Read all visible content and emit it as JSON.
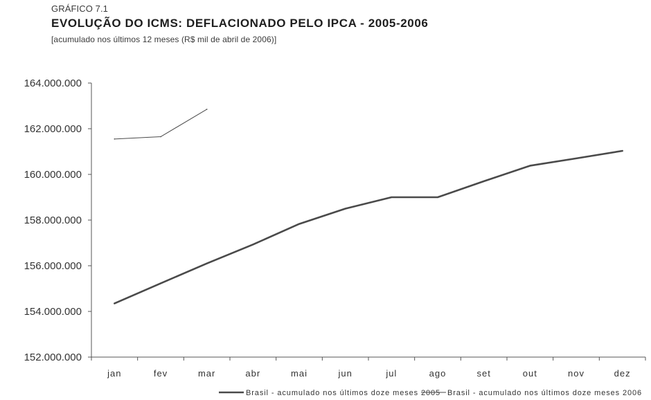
{
  "figure": {
    "label": "GRÁFICO 7.1",
    "title": "EVOLUÇÃO DO ICMS: DEFLACIONADO PELO IPCA - 2005-2006",
    "subtitle": "[acumulado nos últimos 12 meses (R$ mil de abril de 2006)]"
  },
  "chart_data": {
    "type": "line",
    "categories": [
      "jan",
      "fev",
      "mar",
      "abr",
      "mai",
      "jun",
      "jul",
      "ago",
      "set",
      "out",
      "nov",
      "dez"
    ],
    "ylim": [
      152000000,
      164000000
    ],
    "yticks": [
      152000000,
      154000000,
      156000000,
      158000000,
      160000000,
      162000000,
      164000000
    ],
    "ytick_labels": [
      "152.000.000",
      "154.000.000",
      "156.000.000",
      "158.000.000",
      "160.000.000",
      "162.000.000",
      "164.000.000"
    ],
    "xlabel": "",
    "ylabel": "",
    "grid": false,
    "legend_position": "bottom-right",
    "series": [
      {
        "name": "Brasil - acumulado nos últimos doze meses 2005",
        "color": "#4a4a4a",
        "style": "thick",
        "values": [
          154350000,
          155230000,
          156100000,
          156930000,
          157830000,
          158500000,
          159000000,
          159000000,
          159700000,
          160380000,
          160700000,
          161030000
        ]
      },
      {
        "name": "Brasil - acumulado nos últimos doze meses 2006",
        "color": "#4a4a4a",
        "style": "thin",
        "values": [
          161550000,
          161650000,
          162850000,
          null,
          null,
          null,
          null,
          null,
          null,
          null,
          null,
          null
        ]
      }
    ]
  }
}
